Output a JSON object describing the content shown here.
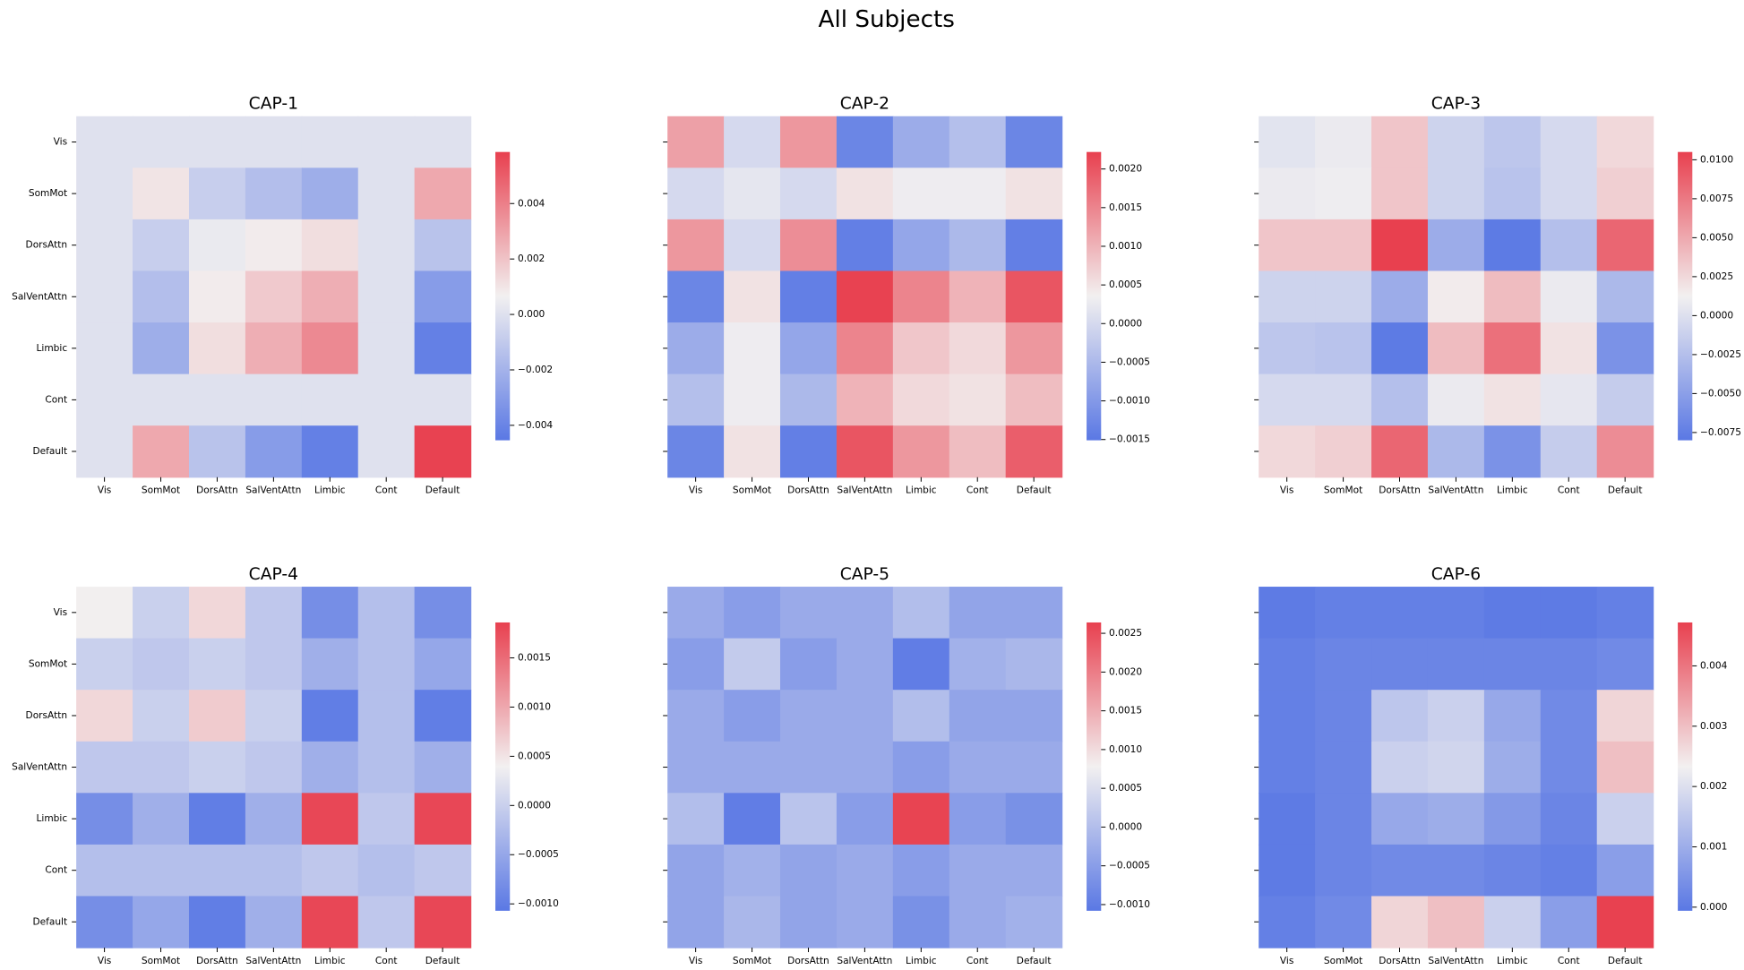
{
  "title": "All Subjects",
  "chart_data": [
    {
      "type": "heatmap",
      "title": "CAP-1",
      "x_categories": [
        "Vis",
        "SomMot",
        "DorsAttn",
        "SalVentAttn",
        "Limbic",
        "Cont",
        "Default"
      ],
      "y_categories": [
        "Vis",
        "SomMot",
        "DorsAttn",
        "SalVentAttn",
        "Limbic",
        "Cont",
        "Default"
      ],
      "colors": [
        "#5a78e4",
        "#f2f0f0",
        "#e8404f"
      ],
      "vlim": [
        -0.00454,
        0.00586
      ],
      "colorbar_ticks": [
        {
          "value": -0.004,
          "label": "−0.004"
        },
        {
          "value": -0.002,
          "label": "−0.002"
        },
        {
          "value": 0,
          "label": "0.000"
        },
        {
          "value": 0.002,
          "label": "0.002"
        },
        {
          "value": 0.004,
          "label": "0.004"
        }
      ],
      "values": [
        [
          0,
          0,
          0,
          0,
          0,
          0,
          0
        ],
        [
          0,
          0.001,
          -0.0008,
          -0.0015,
          -0.0022,
          0,
          0.0028
        ],
        [
          0,
          -0.0008,
          0.0004,
          0.0008,
          0.0012,
          0,
          -0.0013
        ],
        [
          0,
          -0.0015,
          0.0008,
          0.0018,
          0.0026,
          0,
          -0.003
        ],
        [
          0,
          -0.0022,
          0.0012,
          0.0026,
          0.0037,
          0,
          -0.0042
        ],
        [
          0,
          0,
          0,
          0,
          0,
          0,
          0
        ],
        [
          0,
          0.0028,
          -0.0013,
          -0.003,
          -0.0042,
          0,
          0.0058
        ]
      ]
    },
    {
      "type": "heatmap",
      "title": "CAP-2",
      "x_categories": [
        "Vis",
        "SomMot",
        "DorsAttn",
        "SalVentAttn",
        "Limbic",
        "Cont",
        "Default"
      ],
      "colors": [
        "#5a78e4",
        "#f2f0f0",
        "#e8404f"
      ],
      "vlim": [
        -0.00151,
        0.00222
      ],
      "colorbar_ticks": [
        {
          "value": -0.0015,
          "label": "−0.0015"
        },
        {
          "value": -0.001,
          "label": "−0.0010"
        },
        {
          "value": -0.0005,
          "label": "−0.0005"
        },
        {
          "value": 0,
          "label": "0.0000"
        },
        {
          "value": 0.0005,
          "label": "0.0005"
        },
        {
          "value": 0.001,
          "label": "0.0010"
        },
        {
          "value": 0.0015,
          "label": "0.0015"
        },
        {
          "value": 0.002,
          "label": "0.0020"
        }
      ],
      "values": [
        [
          0.0012,
          0,
          0.0013,
          -0.0013,
          -0.0007,
          -0.0004,
          -0.0013
        ],
        [
          0,
          0.0002,
          0,
          0.0005,
          0.0003,
          0.0003,
          0.0005
        ],
        [
          0.0013,
          0,
          0.0014,
          -0.0014,
          -0.0008,
          -0.0005,
          -0.0014
        ],
        [
          -0.0013,
          0.0005,
          -0.0014,
          0.0022,
          0.0015,
          0.001,
          0.002
        ],
        [
          -0.0007,
          0.0003,
          -0.0008,
          0.0015,
          0.0008,
          0.0006,
          0.0013
        ],
        [
          -0.0004,
          0.0003,
          -0.0005,
          0.001,
          0.0006,
          0.0005,
          0.0009
        ],
        [
          -0.0013,
          0.0005,
          -0.0014,
          0.002,
          0.0013,
          0.0009,
          0.0019
        ]
      ]
    },
    {
      "type": "heatmap",
      "title": "CAP-3",
      "x_categories": [
        "Vis",
        "SomMot",
        "DorsAttn",
        "SalVentAttn",
        "Limbic",
        "Cont",
        "Default"
      ],
      "colors": [
        "#5a78e4",
        "#f2f0f0",
        "#e8404f"
      ],
      "vlim": [
        -0.008,
        0.0105
      ],
      "colorbar_ticks": [
        {
          "value": -0.0075,
          "label": "−0.0075"
        },
        {
          "value": -0.005,
          "label": "−0.0050"
        },
        {
          "value": -0.0025,
          "label": "−0.0025"
        },
        {
          "value": 0,
          "label": "0.0000"
        },
        {
          "value": 0.0025,
          "label": "0.0025"
        },
        {
          "value": 0.005,
          "label": "0.0050"
        },
        {
          "value": 0.0075,
          "label": "0.0075"
        },
        {
          "value": 0.01,
          "label": "0.0100"
        }
      ],
      "values": [
        [
          0.0003,
          0.0008,
          0.0035,
          -0.001,
          -0.002,
          -0.0005,
          0.0025
        ],
        [
          0.0008,
          0.001,
          0.0035,
          -0.001,
          -0.0022,
          -0.0005,
          0.003
        ],
        [
          0.0035,
          0.0035,
          0.0105,
          -0.004,
          -0.0078,
          -0.0025,
          0.0085
        ],
        [
          -0.001,
          -0.001,
          -0.004,
          0.0015,
          0.004,
          0.0008,
          -0.003
        ],
        [
          -0.002,
          -0.0022,
          -0.0078,
          0.004,
          0.008,
          0.002,
          -0.006
        ],
        [
          -0.0005,
          -0.0005,
          -0.0025,
          0.0008,
          0.002,
          0.0005,
          -0.0015
        ],
        [
          0.0025,
          0.003,
          0.0085,
          -0.003,
          -0.006,
          -0.0015,
          0.0065
        ]
      ]
    },
    {
      "type": "heatmap",
      "title": "CAP-4",
      "x_categories": [
        "Vis",
        "SomMot",
        "DorsAttn",
        "SalVentAttn",
        "Limbic",
        "Cont",
        "Default"
      ],
      "y_categories": [
        "Vis",
        "SomMot",
        "DorsAttn",
        "SalVentAttn",
        "Limbic",
        "Cont",
        "Default"
      ],
      "colors": [
        "#5a78e4",
        "#f2f0f0",
        "#e8404f"
      ],
      "vlim": [
        -0.00107,
        0.00186
      ],
      "colorbar_ticks": [
        {
          "value": -0.001,
          "label": "−0.0010"
        },
        {
          "value": -0.0005,
          "label": "−0.0005"
        },
        {
          "value": 0,
          "label": "0.0000"
        },
        {
          "value": 0.0005,
          "label": "0.0005"
        },
        {
          "value": 0.001,
          "label": "0.0010"
        },
        {
          "value": 0.0015,
          "label": "0.0015"
        }
      ],
      "values": [
        [
          0.0004,
          0,
          0.0006,
          -0.0001,
          -0.0008,
          -0.0002,
          -0.0008
        ],
        [
          0,
          -0.0001,
          0,
          -0.0001,
          -0.0004,
          -0.0002,
          -0.0005
        ],
        [
          0.0006,
          0,
          0.0007,
          0,
          -0.001,
          -0.0002,
          -0.001
        ],
        [
          -0.0001,
          -0.0001,
          0,
          -0.0001,
          -0.0004,
          -0.0002,
          -0.0004
        ],
        [
          -0.0008,
          -0.0004,
          -0.001,
          -0.0004,
          0.0018,
          -0.0001,
          0.0018
        ],
        [
          -0.0002,
          -0.0002,
          -0.0002,
          -0.0002,
          -0.0001,
          -0.0002,
          -0.0001
        ],
        [
          -0.0008,
          -0.0005,
          -0.001,
          -0.0004,
          0.0018,
          -0.0001,
          0.0018
        ]
      ]
    },
    {
      "type": "heatmap",
      "title": "CAP-5",
      "x_categories": [
        "Vis",
        "SomMot",
        "DorsAttn",
        "SalVentAttn",
        "Limbic",
        "Cont",
        "Default"
      ],
      "colors": [
        "#5a78e4",
        "#f2f0f0",
        "#e8404f"
      ],
      "vlim": [
        -0.00108,
        0.00264
      ],
      "colorbar_ticks": [
        {
          "value": -0.001,
          "label": "−0.0010"
        },
        {
          "value": -0.0005,
          "label": "−0.0005"
        },
        {
          "value": 0,
          "label": "0.0000"
        },
        {
          "value": 0.0005,
          "label": "0.0005"
        },
        {
          "value": 0.001,
          "label": "0.0010"
        },
        {
          "value": 0.0015,
          "label": "0.0015"
        },
        {
          "value": 0.002,
          "label": "0.0020"
        },
        {
          "value": 0.0025,
          "label": "0.0025"
        }
      ],
      "values": [
        [
          -0.0003,
          -0.0005,
          -0.0003,
          -0.0003,
          0,
          -0.0004,
          -0.0004
        ],
        [
          -0.0005,
          0.0002,
          -0.0005,
          -0.0003,
          -0.001,
          -0.0002,
          -0.0001
        ],
        [
          -0.0003,
          -0.0005,
          -0.0003,
          -0.0003,
          0,
          -0.0004,
          -0.0004
        ],
        [
          -0.0003,
          -0.0003,
          -0.0003,
          -0.0003,
          -0.0005,
          -0.0003,
          -0.0003
        ],
        [
          0,
          -0.001,
          0.0001,
          -0.0005,
          0.0026,
          -0.0005,
          -0.0007
        ],
        [
          -0.0004,
          -0.0002,
          -0.0004,
          -0.0003,
          -0.0005,
          -0.0003,
          -0.0003
        ],
        [
          -0.0004,
          -0.0001,
          -0.0004,
          -0.0003,
          -0.0007,
          -0.0003,
          -0.0002
        ]
      ]
    },
    {
      "type": "heatmap",
      "title": "CAP-6",
      "x_categories": [
        "Vis",
        "SomMot",
        "DorsAttn",
        "SalVentAttn",
        "Limbic",
        "Cont",
        "Default"
      ],
      "colors": [
        "#5a78e4",
        "#f2f0f0",
        "#e8404f"
      ],
      "vlim": [
        -6e-05,
        0.00472
      ],
      "colorbar_ticks": [
        {
          "value": 0,
          "label": "0.000"
        },
        {
          "value": 0.001,
          "label": "0.001"
        },
        {
          "value": 0.002,
          "label": "0.002"
        },
        {
          "value": 0.003,
          "label": "0.003"
        },
        {
          "value": 0.004,
          "label": "0.004"
        }
      ],
      "values": [
        [
          0,
          0.0001,
          0.0001,
          0.0001,
          0,
          0,
          0.0001
        ],
        [
          0.0001,
          0.0002,
          0.0002,
          0.0002,
          0.0002,
          0.0002,
          0.0003
        ],
        [
          0.0001,
          0.0002,
          0.0015,
          0.0017,
          0.0009,
          0.0003,
          0.0027
        ],
        [
          0.0001,
          0.0002,
          0.0017,
          0.0018,
          0.001,
          0.0003,
          0.003
        ],
        [
          0,
          0.0002,
          0.0009,
          0.001,
          0.0006,
          0.0002,
          0.0017
        ],
        [
          0,
          0.0002,
          0.0003,
          0.0003,
          0.0002,
          0.0001,
          0.0007
        ],
        [
          0.0001,
          0.0003,
          0.0027,
          0.003,
          0.0017,
          0.0007,
          0.0047
        ]
      ]
    }
  ]
}
